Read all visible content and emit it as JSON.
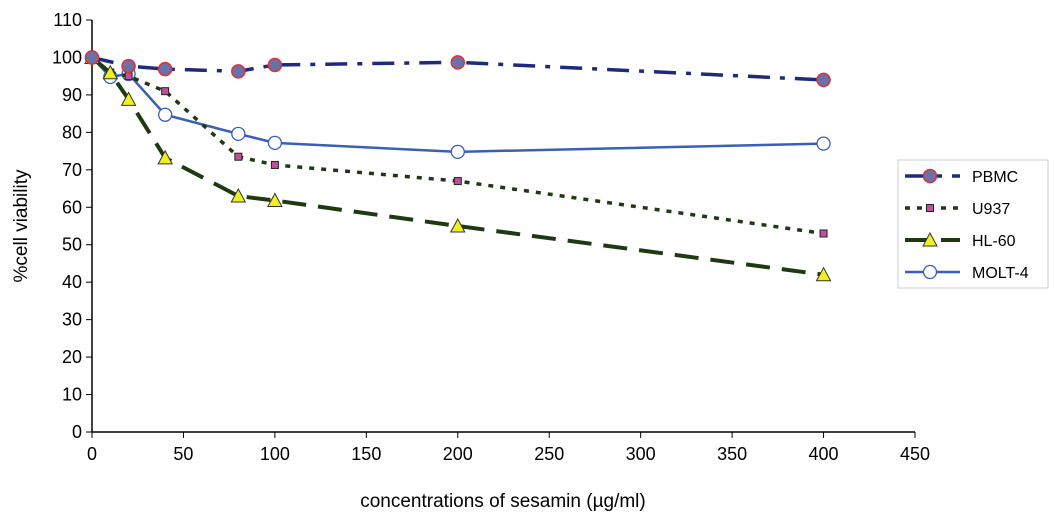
{
  "chart_data": {
    "type": "line",
    "title": "",
    "xlabel": "concentrations of sesamin (µg/ml)",
    "ylabel": "%cell viability",
    "xlim": [
      0,
      450
    ],
    "ylim": [
      0,
      110
    ],
    "xticks": [
      0,
      50,
      100,
      150,
      200,
      250,
      300,
      350,
      400,
      450
    ],
    "yticks": [
      0,
      10,
      20,
      30,
      40,
      50,
      60,
      70,
      80,
      90,
      100,
      110
    ],
    "grid": false,
    "legend_position": "right",
    "series": [
      {
        "name": "PBMC",
        "color": "#1f2a7a",
        "marker": "filled-circle",
        "marker_fill": "#6a71a8",
        "marker_edge": "#e03030",
        "dash": "long-dash-dot",
        "x": [
          0,
          20,
          40,
          80,
          100,
          200,
          400
        ],
        "y": [
          100,
          97.7,
          96.9,
          96.3,
          98,
          98.7,
          94
        ]
      },
      {
        "name": "U937",
        "color": "#1e3a12",
        "marker": "square",
        "marker_fill": "#c0509a",
        "marker_edge": "#222",
        "dash": "dotted",
        "x": [
          0,
          10,
          20,
          40,
          80,
          100,
          200,
          400
        ],
        "y": [
          100,
          96,
          95,
          91,
          73.5,
          71.3,
          67,
          53
        ]
      },
      {
        "name": "HL-60",
        "color": "#1e3a12",
        "marker": "triangle",
        "marker_fill": "#f0f020",
        "marker_edge": "#333",
        "dash": "long-dash",
        "x": [
          0,
          10,
          20,
          40,
          80,
          100,
          200,
          400
        ],
        "y": [
          100,
          95.9,
          88.8,
          73.2,
          63,
          61.8,
          55,
          42
        ]
      },
      {
        "name": "MOLT-4",
        "color": "#3a5fb8",
        "marker": "open-circle",
        "marker_fill": "#ffffff",
        "marker_edge": "#3a5fb8",
        "dash": "solid",
        "x": [
          0,
          10,
          20,
          40,
          80,
          100,
          200,
          400
        ],
        "y": [
          100,
          94.8,
          95.6,
          84.7,
          79.6,
          77.2,
          74.8,
          77
        ]
      }
    ]
  }
}
